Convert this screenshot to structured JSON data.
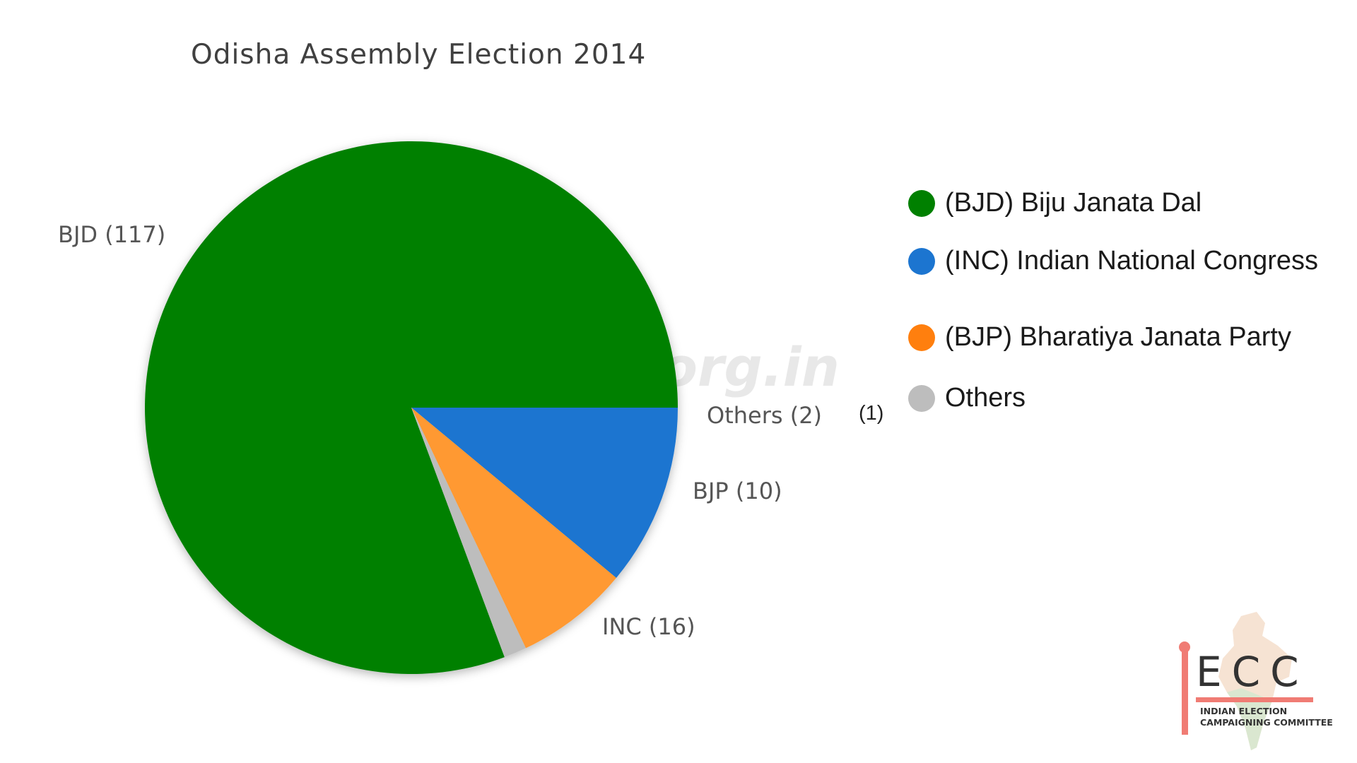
{
  "chart_data": {
    "type": "pie",
    "title": "Odisha Assembly Election 2014",
    "slices": [
      {
        "key": "BJD",
        "label": "BJD (117)",
        "value": 117,
        "color": "#008000"
      },
      {
        "key": "INC",
        "label": "INC (16)",
        "value": 16,
        "color": "#1c75d0"
      },
      {
        "key": "BJP",
        "label": "BJP (10)",
        "value": 10,
        "color": "#ff9933"
      },
      {
        "key": "Others",
        "label": "Others (2)",
        "value": 2,
        "color": "#bdbdbd"
      }
    ],
    "legend": {
      "placement": "right",
      "items": [
        {
          "label": "(BJD) Biju Janata Dal",
          "color": "#008000"
        },
        {
          "label": "(INC) Indian National Congress",
          "color": "#1c75d0"
        },
        {
          "label": "(BJP) Bharatiya Janata Party",
          "color": "#ff7f0e"
        },
        {
          "label": "Others",
          "color": "#bdbdbd"
        }
      ]
    },
    "note": "(1)",
    "watermark": "iecc.org.in"
  },
  "logo": {
    "letters": "ECC",
    "line1": "INDIAN ELECTION",
    "line2": "CAMPAIGNING COMMITTEE",
    "icon": "india-map-icon",
    "accent_color": "#f07c74"
  }
}
